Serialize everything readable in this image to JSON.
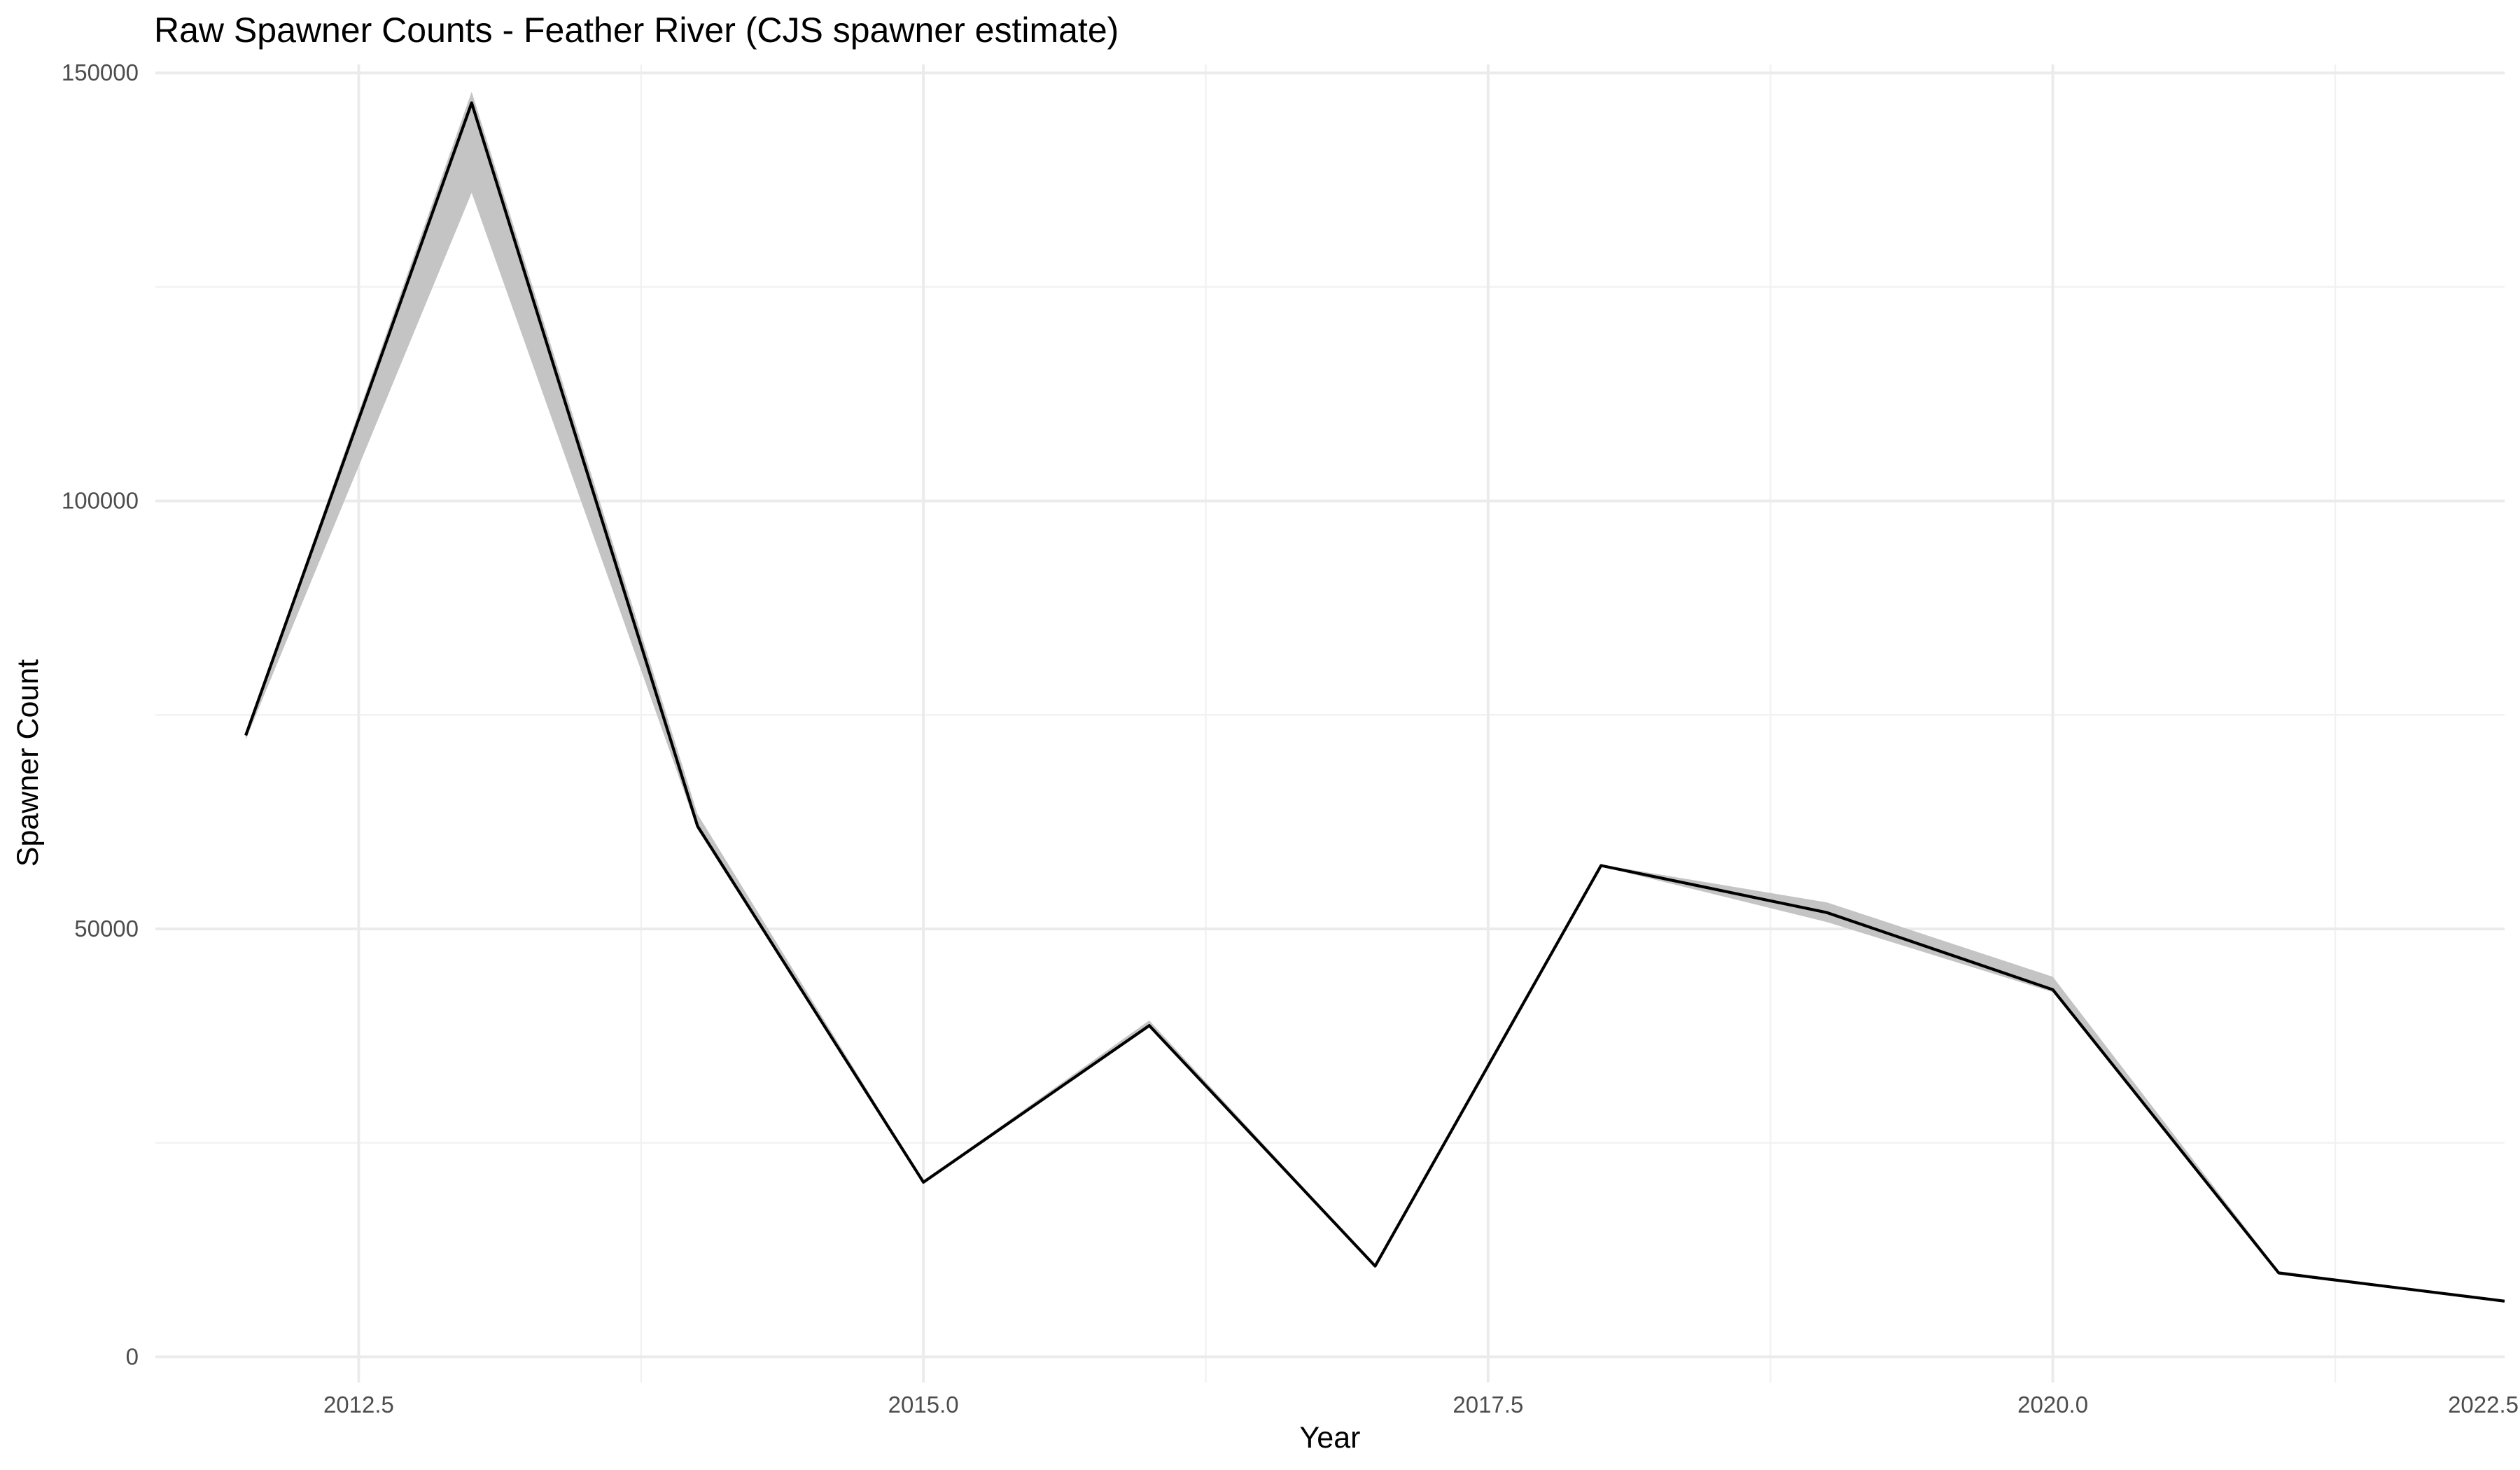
{
  "chart_data": {
    "type": "line",
    "title": "Raw Spawner Counts - Feather River (CJS spawner estimate)",
    "xlabel": "Year",
    "ylabel": "Spawner Count",
    "xlim": [
      2011.6,
      2022.0
    ],
    "ylim": [
      -3000,
      151000
    ],
    "x_ticks": [
      2012.5,
      2015.0,
      2017.5,
      2020.0,
      2022.5
    ],
    "x_tick_labels": [
      "2012.5",
      "2015.0",
      "2017.5",
      "2020.0",
      "2022.5"
    ],
    "y_ticks": [
      0,
      50000,
      100000,
      150000
    ],
    "y_tick_labels": [
      "0",
      "50000",
      "100000",
      "150000"
    ],
    "grid": true,
    "colors": {
      "line": "#000000",
      "ribbon": "#c4c4c4",
      "grid_major": "#ebebeb",
      "grid_minor": "#f2f2f2"
    },
    "series": [
      {
        "x": [
          2012,
          2013,
          2014,
          2015,
          2016,
          2017,
          2018,
          2019,
          2020,
          2021,
          2022
        ],
        "values": [
          72600,
          146500,
          62000,
          20400,
          38700,
          10600,
          57400,
          51900,
          42900,
          9800,
          6500
        ],
        "lower": [
          72100,
          136000,
          61600,
          20300,
          38500,
          10500,
          57300,
          50800,
          42600,
          9700,
          6400
        ],
        "upper": [
          72900,
          147800,
          63400,
          20500,
          39300,
          10700,
          57500,
          53100,
          44400,
          10000,
          6600
        ]
      }
    ]
  }
}
